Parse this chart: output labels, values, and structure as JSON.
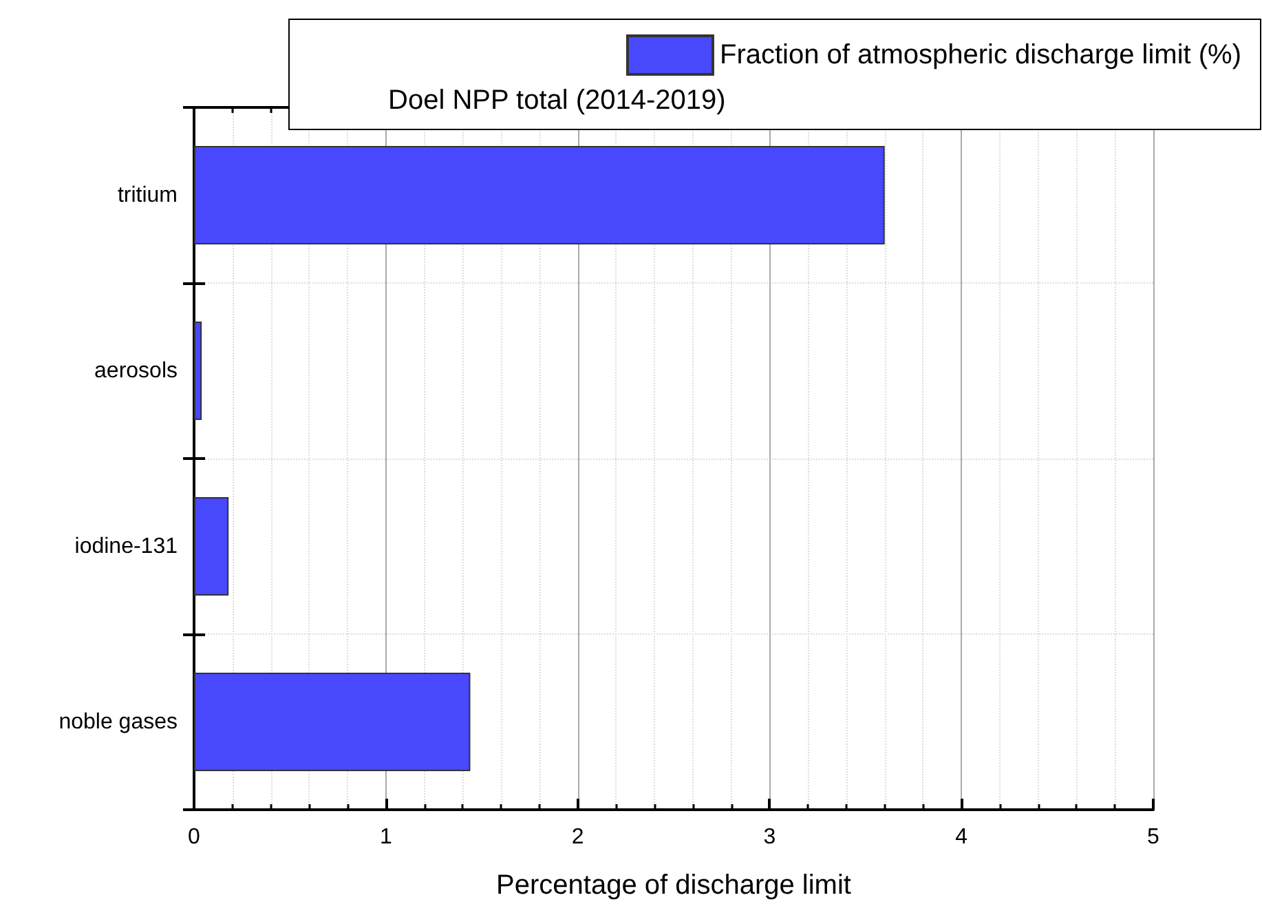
{
  "chart_data": {
    "type": "bar",
    "orientation": "horizontal",
    "xlabel": "Percentage of discharge limit",
    "legend_title": "Doel NPP total (2014-2019)",
    "categories": [
      "tritium",
      "aerosols",
      "iodine-131",
      "noble gases"
    ],
    "series": [
      {
        "name": "Fraction of atmospheric discharge limit (%)",
        "color": "#4848fc",
        "values": [
          3.6,
          0.04,
          0.18,
          1.44
        ]
      }
    ],
    "xlim": [
      0,
      5
    ],
    "xticks": [
      0,
      1,
      2,
      3,
      4,
      5
    ],
    "grid": true,
    "legend": "top right"
  }
}
